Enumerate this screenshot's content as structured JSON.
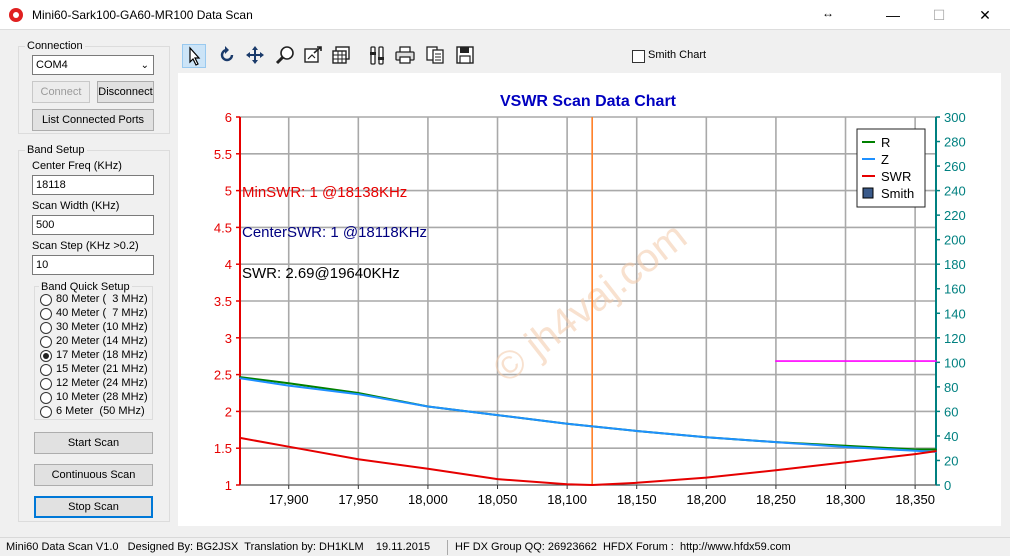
{
  "window": {
    "title": "Mini60-Sark100-GA60-MR100 Data Scan"
  },
  "connection": {
    "group_label": "Connection",
    "port_value": "COM4",
    "connect_label": "Connect",
    "disconnect_label": "Disconnect",
    "list_ports_label": "List Connected Ports"
  },
  "band_setup": {
    "group_label": "Band Setup",
    "center_freq_label": "Center Freq  (KHz)",
    "center_freq_value": "18118",
    "scan_width_label": "Scan Width   (KHz)",
    "scan_width_value": "500",
    "scan_step_label": "Scan Step    (KHz >0.2)",
    "scan_step_value": "10",
    "quick_label": "Band Quick Setup",
    "bands": [
      {
        "label": "80 Meter (  3 MHz)",
        "selected": false
      },
      {
        "label": "40 Meter (  7 MHz)",
        "selected": false
      },
      {
        "label": "30 Meter (10 MHz)",
        "selected": false
      },
      {
        "label": "20 Meter (14 MHz)",
        "selected": false
      },
      {
        "label": "17 Meter (18 MHz)",
        "selected": true
      },
      {
        "label": "15 Meter (21 MHz)",
        "selected": false
      },
      {
        "label": "12 Meter (24 MHz)",
        "selected": false
      },
      {
        "label": "10 Meter (28 MHz)",
        "selected": false
      },
      {
        "label": "6 Meter  (50 MHz)",
        "selected": false
      }
    ],
    "start_label": "Start Scan",
    "continuous_label": "Continuous Scan",
    "stop_label": "Stop Scan"
  },
  "toolbar": {
    "tools": [
      "pointer-icon",
      "reset-icon",
      "pan-icon",
      "zoom-icon",
      "save-image-icon",
      "data-table-icon",
      "settings-icon",
      "print-icon",
      "copy-icon",
      "save-icon"
    ],
    "smith_label": "Smith Chart",
    "smith_checked": false
  },
  "chart_data": {
    "type": "line",
    "title": "VSWR Scan Data Chart",
    "xlim": [
      17865,
      18365
    ],
    "ylim": [
      1,
      6
    ],
    "y2lim": [
      0,
      300
    ],
    "x_ticks": [
      17900,
      17950,
      18000,
      18050,
      18100,
      18150,
      18200,
      18250,
      18300,
      18350
    ],
    "x_tick_labels": [
      "17,900",
      "17,950",
      "18,000",
      "18,050",
      "18,100",
      "18,150",
      "18,200",
      "18,250",
      "18,300",
      "18,350"
    ],
    "y_ticks": [
      1,
      1.5,
      2,
      2.5,
      3,
      3.5,
      4,
      4.5,
      5,
      5.5,
      6
    ],
    "y_tick_labels": [
      "1",
      "1.5",
      "2",
      "2.5",
      "3",
      "3.5",
      "4",
      "4.5",
      "5",
      "5.5",
      "6"
    ],
    "y2_ticks": [
      0,
      20,
      40,
      60,
      80,
      100,
      120,
      140,
      160,
      180,
      200,
      220,
      240,
      260,
      280,
      300
    ],
    "y2_tick_labels": [
      "0",
      "20",
      "40",
      "60",
      "80",
      "100",
      "120",
      "140",
      "160",
      "180",
      "200",
      "220",
      "240",
      "260",
      "280",
      "300"
    ],
    "grid": true,
    "legend_position": "top-right",
    "center_marker_x": 18118,
    "series": [
      {
        "name": "R",
        "axis": "right",
        "color": "#008000",
        "x": [
          17865,
          17900,
          17950,
          18000,
          18050,
          18100,
          18150,
          18200,
          18250,
          18300,
          18350,
          18365
        ],
        "values": [
          88,
          83,
          75,
          64,
          57,
          50,
          44,
          39,
          35,
          32,
          29,
          29
        ]
      },
      {
        "name": "Z",
        "axis": "right",
        "color": "#1e90ff",
        "x": [
          17865,
          17900,
          17950,
          18000,
          18050,
          18100,
          18150,
          18200,
          18250,
          18300,
          18350,
          18365
        ],
        "values": [
          87,
          81,
          74,
          64,
          57,
          50,
          44,
          39,
          35,
          31,
          28,
          27
        ]
      },
      {
        "name": "SWR",
        "axis": "left",
        "color": "#e60000",
        "x": [
          17865,
          17900,
          17950,
          18000,
          18050,
          18100,
          18118,
          18150,
          18200,
          18250,
          18300,
          18350,
          18365
        ],
        "values": [
          1.64,
          1.52,
          1.35,
          1.22,
          1.08,
          1.01,
          1.0,
          1.03,
          1.1,
          1.2,
          1.31,
          1.42,
          1.46
        ]
      },
      {
        "name": "Smith",
        "axis": "right",
        "color": "#ff00ff",
        "legend_marker": "box",
        "x": [
          18250,
          18365
        ],
        "values": [
          101,
          101
        ]
      }
    ],
    "annotations": [
      {
        "text": "MinSWR: 1 @18138KHz",
        "color": "#e60000"
      },
      {
        "text": "CenterSWR: 1 @18118KHz",
        "color": "#000080"
      },
      {
        "text": "SWR: 2.69@19640KHz",
        "color": "#000000"
      }
    ],
    "watermark": "© jh4vaj.com"
  },
  "status": {
    "left": "Mini60 Data Scan V1.0   Designed By: BG2JSX  Translation by: DH1KLM    19.11.2015",
    "right": "HF DX Group QQ: 26923662  HFDX Forum :  http://www.hfdx59.com"
  },
  "colors": {
    "left_axis": "#e60000",
    "right_axis": "#008080",
    "title": "#0000c0",
    "focus": "#0078d7"
  }
}
